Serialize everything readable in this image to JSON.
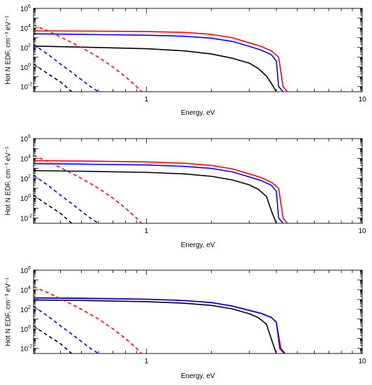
{
  "chart_data": [
    {
      "type": "line",
      "xlabel": "Energy, eV",
      "ylabel": "Hot N EDF, cm⁻³ eV⁻¹",
      "xscale": "log",
      "yscale": "log",
      "xlim": [
        0.3,
        10
      ],
      "ylim": [
        0.003,
        1000000
      ],
      "xticks": [
        {
          "value": 1,
          "label": "1"
        },
        {
          "value": 10,
          "label": "10"
        }
      ],
      "yticks": [
        {
          "value": 0.01,
          "base": "10",
          "exp": "-2"
        },
        {
          "value": 1,
          "base": "10",
          "exp": "0"
        },
        {
          "value": 100,
          "base": "10",
          "exp": "2"
        },
        {
          "value": 10000,
          "base": "10",
          "exp": "4"
        },
        {
          "value": 1000000,
          "base": "10",
          "exp": "6"
        }
      ],
      "grid": false,
      "series": [
        {
          "color": "#ff0000",
          "dash": "solid",
          "x": [
            0.3,
            0.5,
            1,
            1.5,
            2,
            2.5,
            3,
            3.4,
            3.8,
            4.1,
            4.3,
            4.5
          ],
          "y": [
            5000,
            4800,
            4300,
            3500,
            2200,
            1000,
            300,
            130,
            45,
            10,
            0.01,
            0.003
          ]
        },
        {
          "color": "#0000ff",
          "dash": "solid",
          "x": [
            0.3,
            0.5,
            1,
            1.5,
            2,
            2.5,
            3,
            3.4,
            3.8,
            4.0,
            4.1,
            4.3
          ],
          "y": [
            2500,
            2200,
            1800,
            1400,
            900,
            420,
            130,
            55,
            18,
            4,
            0.01,
            0.003
          ]
        },
        {
          "color": "#000000",
          "dash": "solid",
          "x": [
            0.3,
            0.5,
            1,
            1.5,
            2,
            2.5,
            3,
            3.3,
            3.6,
            3.8,
            4.0
          ],
          "y": [
            140,
            110,
            75,
            45,
            22,
            8,
            2.5,
            0.7,
            0.12,
            0.02,
            0.003
          ]
        },
        {
          "color": "#ff0000",
          "dash": "dashed",
          "x": [
            0.3,
            0.35,
            0.4,
            0.5,
            0.6,
            0.7,
            0.8,
            0.9,
            0.95
          ],
          "y": [
            20000,
            5000,
            1200,
            100,
            10,
            1,
            0.1,
            0.01,
            0.003
          ]
        },
        {
          "color": "#0000ff",
          "dash": "dashed",
          "x": [
            0.3,
            0.35,
            0.4,
            0.45,
            0.5,
            0.55,
            0.6
          ],
          "y": [
            200,
            20,
            2,
            0.3,
            0.05,
            0.01,
            0.003
          ]
        },
        {
          "color": "#000000",
          "dash": "dashed",
          "x": [
            0.3,
            0.35,
            0.4,
            0.45
          ],
          "y": [
            2,
            0.2,
            0.03,
            0.003
          ]
        }
      ]
    },
    {
      "type": "line",
      "xlabel": "Energy, eV",
      "ylabel": "Hot N EDF, cm⁻³ eV⁻¹",
      "xscale": "log",
      "yscale": "log",
      "xlim": [
        0.3,
        10
      ],
      "ylim": [
        0.003,
        1000000
      ],
      "xticks": [
        {
          "value": 1,
          "label": "1"
        },
        {
          "value": 10,
          "label": "10"
        }
      ],
      "yticks": [
        {
          "value": 0.01,
          "base": "10",
          "exp": "-2"
        },
        {
          "value": 1,
          "base": "10",
          "exp": "0"
        },
        {
          "value": 100,
          "base": "10",
          "exp": "2"
        },
        {
          "value": 10000,
          "base": "10",
          "exp": "4"
        },
        {
          "value": 1000000,
          "base": "10",
          "exp": "6"
        }
      ],
      "grid": false,
      "series": [
        {
          "color": "#ff0000",
          "dash": "solid",
          "x": [
            0.3,
            0.5,
            1,
            1.5,
            2,
            2.5,
            3,
            3.4,
            3.8,
            4.1,
            4.3,
            4.5
          ],
          "y": [
            6000,
            5500,
            4500,
            3300,
            2000,
            900,
            280,
            120,
            40,
            10,
            0.01,
            0.003
          ]
        },
        {
          "color": "#0000ff",
          "dash": "solid",
          "x": [
            0.3,
            0.5,
            1,
            1.5,
            2,
            2.5,
            3,
            3.4,
            3.8,
            4.0,
            4.1,
            4.3
          ],
          "y": [
            3000,
            2700,
            2200,
            1600,
            1000,
            450,
            140,
            60,
            20,
            5,
            0.01,
            0.003
          ]
        },
        {
          "color": "#000000",
          "dash": "solid",
          "x": [
            0.3,
            0.5,
            1,
            1.5,
            2,
            2.5,
            3,
            3.3,
            3.6,
            3.8,
            4.0
          ],
          "y": [
            600,
            520,
            400,
            280,
            160,
            70,
            22,
            8,
            1.5,
            0.05,
            0.003
          ]
        },
        {
          "color": "#ff0000",
          "dash": "dashed",
          "x": [
            0.3,
            0.35,
            0.4,
            0.5,
            0.6,
            0.7,
            0.8,
            0.9,
            0.95
          ],
          "y": [
            20000,
            5000,
            1200,
            100,
            10,
            1,
            0.1,
            0.01,
            0.003
          ]
        },
        {
          "color": "#0000ff",
          "dash": "dashed",
          "x": [
            0.3,
            0.35,
            0.4,
            0.45,
            0.5,
            0.55,
            0.6
          ],
          "y": [
            200,
            20,
            2,
            0.3,
            0.05,
            0.01,
            0.003
          ]
        },
        {
          "color": "#000000",
          "dash": "dashed",
          "x": [
            0.3,
            0.35,
            0.4,
            0.45
          ],
          "y": [
            2,
            0.2,
            0.03,
            0.003
          ]
        }
      ]
    },
    {
      "type": "line",
      "xlabel": "Energy, eV",
      "ylabel": "Hot N EDF, cm⁻³ eV⁻¹",
      "xscale": "log",
      "yscale": "log",
      "xlim": [
        0.3,
        10
      ],
      "ylim": [
        0.003,
        1000000
      ],
      "xticks": [
        {
          "value": 1,
          "label": "1"
        },
        {
          "value": 10,
          "label": "10"
        }
      ],
      "yticks": [
        {
          "value": 0.01,
          "base": "10",
          "exp": "-2"
        },
        {
          "value": 1,
          "base": "10",
          "exp": "0"
        },
        {
          "value": 100,
          "base": "10",
          "exp": "2"
        },
        {
          "value": 10000,
          "base": "10",
          "exp": "4"
        },
        {
          "value": 1000000,
          "base": "10",
          "exp": "6"
        }
      ],
      "grid": false,
      "series": [
        {
          "color": "#ff0000",
          "dash": "solid",
          "x": [
            0.3,
            0.5,
            1,
            1.5,
            2,
            2.5,
            3,
            3.4,
            3.8,
            4.0,
            4.2,
            4.4
          ],
          "y": [
            1500,
            1400,
            1100,
            800,
            500,
            220,
            80,
            40,
            15,
            5,
            0.01,
            0.003
          ]
        },
        {
          "color": "#0000ff",
          "dash": "solid",
          "x": [
            0.3,
            0.5,
            1,
            1.5,
            2,
            2.5,
            3,
            3.4,
            3.8,
            4.0,
            4.15,
            4.35
          ],
          "y": [
            1400,
            1300,
            1050,
            780,
            480,
            210,
            75,
            38,
            14,
            4.5,
            0.01,
            0.003
          ]
        },
        {
          "color": "#000000",
          "dash": "solid",
          "x": [
            0.3,
            0.5,
            1,
            1.5,
            2,
            2.5,
            3,
            3.3,
            3.6,
            3.8,
            4.0
          ],
          "y": [
            900,
            800,
            600,
            420,
            250,
            110,
            35,
            14,
            3,
            0.08,
            0.003
          ]
        },
        {
          "color": "#ff0000",
          "dash": "dashed",
          "x": [
            0.3,
            0.35,
            0.4,
            0.5,
            0.6,
            0.7,
            0.8,
            0.9,
            0.95
          ],
          "y": [
            20000,
            5000,
            1200,
            100,
            10,
            1,
            0.1,
            0.01,
            0.003
          ]
        },
        {
          "color": "#0000ff",
          "dash": "dashed",
          "x": [
            0.3,
            0.35,
            0.4,
            0.45,
            0.5,
            0.55,
            0.6
          ],
          "y": [
            200,
            20,
            2,
            0.3,
            0.05,
            0.01,
            0.003
          ]
        },
        {
          "color": "#000000",
          "dash": "dashed",
          "x": [
            0.3,
            0.35,
            0.4,
            0.45
          ],
          "y": [
            2,
            0.2,
            0.03,
            0.003
          ]
        }
      ]
    }
  ]
}
